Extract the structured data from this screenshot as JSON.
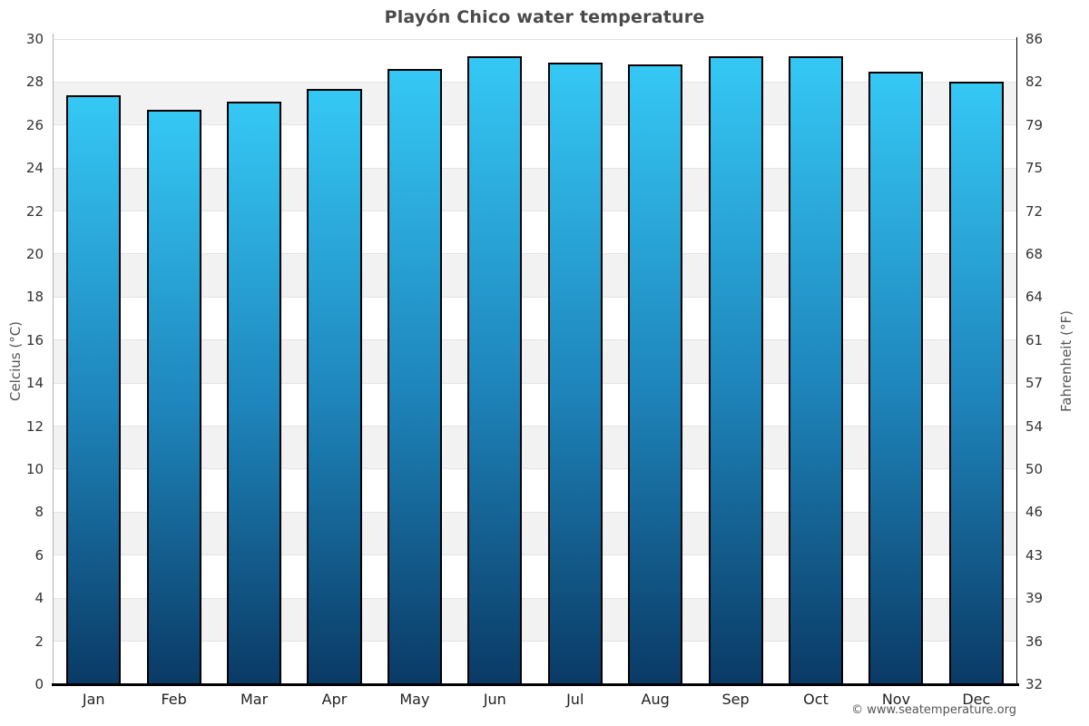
{
  "page": {
    "footer": "© www.seatemperature.org"
  },
  "chart_data": {
    "type": "bar",
    "title": "Playón Chico water temperature",
    "categories": [
      "Jan",
      "Feb",
      "Mar",
      "Apr",
      "May",
      "Jun",
      "Jul",
      "Aug",
      "Sep",
      "Oct",
      "Nov",
      "Dec"
    ],
    "values": [
      27.4,
      26.7,
      27.1,
      27.7,
      28.6,
      29.2,
      28.9,
      28.8,
      29.2,
      29.2,
      28.5,
      28.0
    ],
    "series_name": "Water temperature",
    "ylabel_left": "Celcius (°C)",
    "ylabel_right": "Fahrenheit (°F)",
    "ylim": [
      0,
      30
    ],
    "celsius_ticks": [
      30,
      28,
      26,
      24,
      22,
      20,
      18,
      16,
      14,
      12,
      10,
      8,
      6,
      4,
      2,
      0
    ],
    "fahrenheit_ticks": [
      86,
      82,
      79,
      75,
      72,
      68,
      64,
      61,
      57,
      54,
      50,
      46,
      43,
      39,
      36,
      32
    ],
    "grid": "horizontal alternating bands every 2°C",
    "legend": "none",
    "colors": {
      "bar_gradient_top": "#35c8f5",
      "bar_gradient_mid": "#1e85bb",
      "bar_gradient_bottom": "#0a3a65",
      "bar_border": "#000000",
      "band_gray": "#f2f2f2",
      "gridline": "#e4e4e4",
      "title_text": "#4a4a4a",
      "tick_text": "#333333",
      "axis_title_text": "#555555",
      "left_axis_line": "#b3b3b3",
      "right_axis_line": "#000000",
      "bottom_axis_line": "#000000"
    }
  }
}
